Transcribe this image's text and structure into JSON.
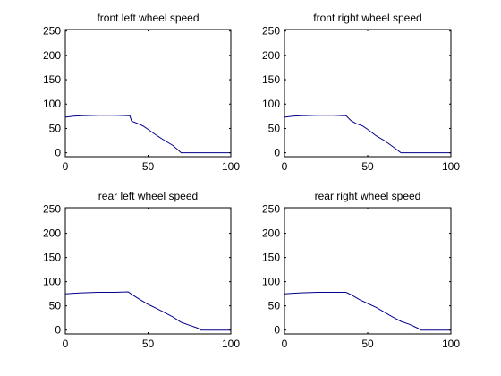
{
  "figure": {
    "background": "#ffffff",
    "line_color": "#00008b"
  },
  "chart_data": [
    {
      "type": "line",
      "title": "front left wheel speed",
      "xlabel": "",
      "ylabel": "",
      "xlim": [
        0,
        100
      ],
      "ylim": [
        -8,
        253
      ],
      "xticks": [
        0,
        50,
        100
      ],
      "yticks": [
        0,
        50,
        100,
        150,
        200,
        250
      ],
      "grid": false,
      "series": [
        {
          "x": [
            0,
            5,
            10,
            20,
            30,
            39,
            40,
            43,
            47,
            50,
            55,
            60,
            65,
            70,
            80,
            90,
            100
          ],
          "y": [
            73,
            75,
            76,
            77,
            77,
            76,
            65,
            61,
            55,
            48,
            36,
            25,
            15,
            0,
            0,
            0,
            0
          ]
        }
      ]
    },
    {
      "type": "line",
      "title": "front right wheel speed",
      "xlabel": "",
      "ylabel": "",
      "xlim": [
        0,
        100
      ],
      "ylim": [
        -8,
        253
      ],
      "xticks": [
        0,
        50,
        100
      ],
      "yticks": [
        0,
        50,
        100,
        150,
        200,
        250
      ],
      "grid": false,
      "series": [
        {
          "x": [
            0,
            5,
            10,
            20,
            30,
            37,
            40,
            43,
            47,
            50,
            55,
            60,
            65,
            70,
            80,
            90,
            100
          ],
          "y": [
            73,
            75,
            76,
            77,
            77,
            76,
            66,
            60,
            55,
            48,
            35,
            25,
            13,
            0,
            0,
            0,
            0
          ]
        }
      ]
    },
    {
      "type": "line",
      "title": "rear left wheel speed",
      "xlabel": "",
      "ylabel": "",
      "xlim": [
        0,
        100
      ],
      "ylim": [
        -8,
        253
      ],
      "xticks": [
        0,
        50,
        100
      ],
      "yticks": [
        0,
        50,
        100,
        150,
        200,
        250
      ],
      "grid": false,
      "series": [
        {
          "x": [
            0,
            5,
            10,
            20,
            30,
            38,
            40,
            45,
            50,
            55,
            60,
            65,
            70,
            75,
            80,
            82,
            90,
            100
          ],
          "y": [
            75,
            76,
            77,
            78,
            78,
            79,
            74,
            63,
            53,
            45,
            36,
            27,
            16,
            10,
            4,
            0,
            0,
            0
          ]
        }
      ]
    },
    {
      "type": "line",
      "title": "rear right wheel speed",
      "xlabel": "",
      "ylabel": "",
      "xlim": [
        0,
        100
      ],
      "ylim": [
        -8,
        253
      ],
      "xticks": [
        0,
        50,
        100
      ],
      "yticks": [
        0,
        50,
        100,
        150,
        200,
        250
      ],
      "grid": false,
      "series": [
        {
          "x": [
            0,
            5,
            10,
            20,
            30,
            37,
            40,
            45,
            50,
            55,
            60,
            65,
            70,
            75,
            80,
            82,
            90,
            100
          ],
          "y": [
            75,
            76,
            77,
            78,
            78,
            78,
            73,
            63,
            55,
            47,
            37,
            27,
            18,
            12,
            4,
            0,
            0,
            0
          ]
        }
      ]
    }
  ]
}
